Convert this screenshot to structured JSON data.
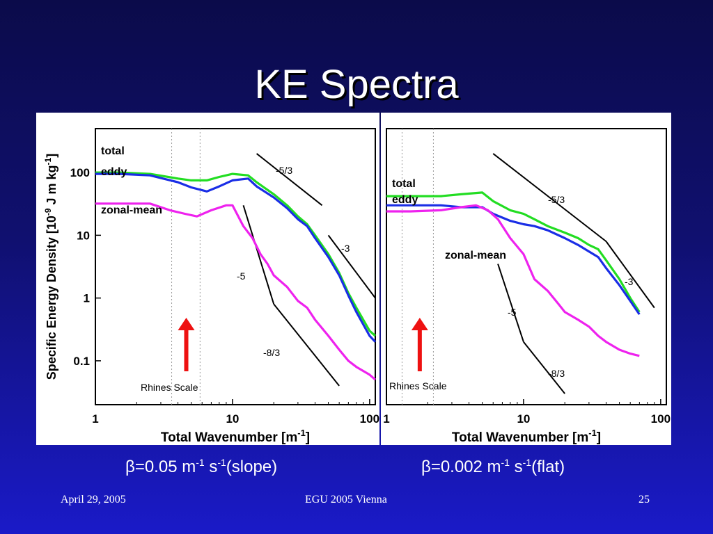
{
  "slide": {
    "title": "KE Spectra",
    "footer_left": "April 29, 2005",
    "footer_center": "EGU 2005 Vienna",
    "footer_right": "25"
  },
  "colors": {
    "total": "#22dd22",
    "eddy": "#1a2ee6",
    "zonal_mean": "#ee22ee",
    "arrow": "#ee1111",
    "background": "#10108c"
  },
  "chart_data": [
    {
      "type": "line",
      "caption": {
        "beta": "β",
        "value": "=0.05 m",
        "exp1": "-1",
        "unit": " s",
        "exp2": "-1",
        "note": "(slope)"
      },
      "ylabel_main": "Specific Energy Density [10",
      "ylabel_exp1": "-9",
      "ylabel_mid": " J m kg",
      "ylabel_exp2": "-1",
      "ylabel_end": "]",
      "xlabel_main": "Total Wavenumber [m",
      "xlabel_exp": "-1",
      "xlabel_end": "]",
      "x_log": true,
      "y_log": true,
      "xlim": [
        1,
        110
      ],
      "ylim": [
        0.02,
        500
      ],
      "x_ticks": [
        "1",
        "10",
        "100"
      ],
      "y_ticks": [
        "100",
        "10",
        "1",
        "0.1"
      ],
      "annotations": [
        "Rhines Scale",
        "-5/3",
        "-3",
        "-5",
        "-8/3"
      ],
      "series": [
        {
          "name": "total",
          "x": [
            1,
            1.5,
            2.5,
            4,
            5,
            6.5,
            8,
            10,
            13,
            15,
            20,
            25,
            30,
            35,
            40,
            50,
            60,
            70,
            80,
            100,
            110
          ],
          "y": [
            100,
            100,
            95,
            80,
            75,
            75,
            85,
            95,
            90,
            70,
            45,
            30,
            20,
            15,
            10,
            5,
            2.5,
            1.2,
            0.7,
            0.3,
            0.25
          ]
        },
        {
          "name": "eddy",
          "x": [
            1,
            1.5,
            2.5,
            4,
            5,
            6.5,
            8,
            10,
            13,
            15,
            20,
            25,
            30,
            35,
            40,
            50,
            60,
            70,
            80,
            100,
            110
          ],
          "y": [
            95,
            95,
            90,
            70,
            58,
            50,
            60,
            75,
            80,
            60,
            40,
            27,
            18,
            14,
            9,
            4.5,
            2.3,
            1.1,
            0.6,
            0.25,
            0.2
          ]
        },
        {
          "name": "zonal-mean",
          "x": [
            1,
            1.5,
            2.5,
            3.5,
            4.5,
            5.5,
            7,
            9,
            10,
            12,
            14,
            16,
            18,
            20,
            25,
            30,
            35,
            40,
            50,
            60,
            70,
            80,
            100,
            110
          ],
          "y": [
            32,
            32,
            32,
            25,
            22,
            20,
            25,
            30,
            30,
            14,
            9,
            5,
            3.5,
            2.3,
            1.5,
            0.9,
            0.7,
            0.45,
            0.25,
            0.15,
            0.1,
            0.08,
            0.06,
            0.05
          ]
        }
      ],
      "reference_lines": [
        {
          "label": "-5/3",
          "x": [
            15,
            45
          ],
          "y": [
            200,
            30
          ]
        },
        {
          "label": "-3",
          "x": [
            50,
            110
          ],
          "y": [
            10,
            1
          ]
        },
        {
          "label": "-5",
          "x": [
            12,
            20
          ],
          "y": [
            30,
            0.8
          ]
        },
        {
          "label": "-8/3",
          "x": [
            20,
            60
          ],
          "y": [
            0.8,
            0.04
          ]
        }
      ],
      "rhines_lines": [
        3.6,
        5.8
      ],
      "arrow_x": 4.6
    },
    {
      "type": "line",
      "caption": {
        "beta": "β",
        "value": "=0.002 m",
        "exp1": "-1",
        "unit": " s",
        "exp2": "-1",
        "note": "(flat)"
      },
      "xlabel_main": "Total Wavenumber [m",
      "xlabel_exp": "-1",
      "xlabel_end": "]",
      "x_log": true,
      "y_log": true,
      "xlim": [
        1,
        110
      ],
      "ylim": [
        0.02,
        500
      ],
      "x_ticks": [
        "1",
        "10",
        "100"
      ],
      "y_ticks": [],
      "annotations": [
        "Rhines Scale",
        "-5/3",
        "-3",
        "-5",
        "-8/3"
      ],
      "series": [
        {
          "name": "total",
          "x": [
            1,
            1.5,
            2.5,
            3.5,
            5,
            6,
            8,
            10,
            12,
            15,
            20,
            25,
            30,
            35,
            40,
            50,
            60,
            70
          ],
          "y": [
            42,
            42,
            42,
            45,
            48,
            35,
            25,
            22,
            18,
            14,
            11,
            9,
            7,
            6,
            4,
            2,
            1,
            0.6
          ]
        },
        {
          "name": "eddy",
          "x": [
            1,
            1.5,
            2.5,
            3.5,
            5,
            6,
            8,
            10,
            12,
            15,
            20,
            25,
            30,
            35,
            40,
            50,
            60,
            70
          ],
          "y": [
            30,
            30,
            30,
            28,
            28,
            22,
            17,
            15,
            14,
            12,
            9,
            7,
            5.5,
            4.5,
            3,
            1.6,
            0.9,
            0.55
          ]
        },
        {
          "name": "zonal-mean",
          "x": [
            1,
            1.5,
            2.5,
            3.5,
            4.5,
            5.5,
            6.5,
            8,
            10,
            12,
            15,
            18,
            20,
            25,
            30,
            35,
            40,
            50,
            60,
            70
          ],
          "y": [
            24,
            24,
            25,
            28,
            30,
            25,
            18,
            9,
            5,
            2,
            1.3,
            0.8,
            0.6,
            0.45,
            0.35,
            0.25,
            0.2,
            0.15,
            0.13,
            0.12
          ]
        }
      ],
      "reference_lines": [
        {
          "label": "-5/3",
          "x": [
            6,
            40
          ],
          "y": [
            200,
            8
          ]
        },
        {
          "label": "-3",
          "x": [
            40,
            90
          ],
          "y": [
            8,
            0.7
          ]
        },
        {
          "label": "-5",
          "x": [
            6.5,
            10
          ],
          "y": [
            3.5,
            0.2
          ]
        },
        {
          "label": "-8/3",
          "x": [
            10,
            20
          ],
          "y": [
            0.2,
            0.03
          ]
        }
      ],
      "rhines_lines": [
        1.3,
        2.2
      ],
      "arrow_x": 1.75
    }
  ]
}
